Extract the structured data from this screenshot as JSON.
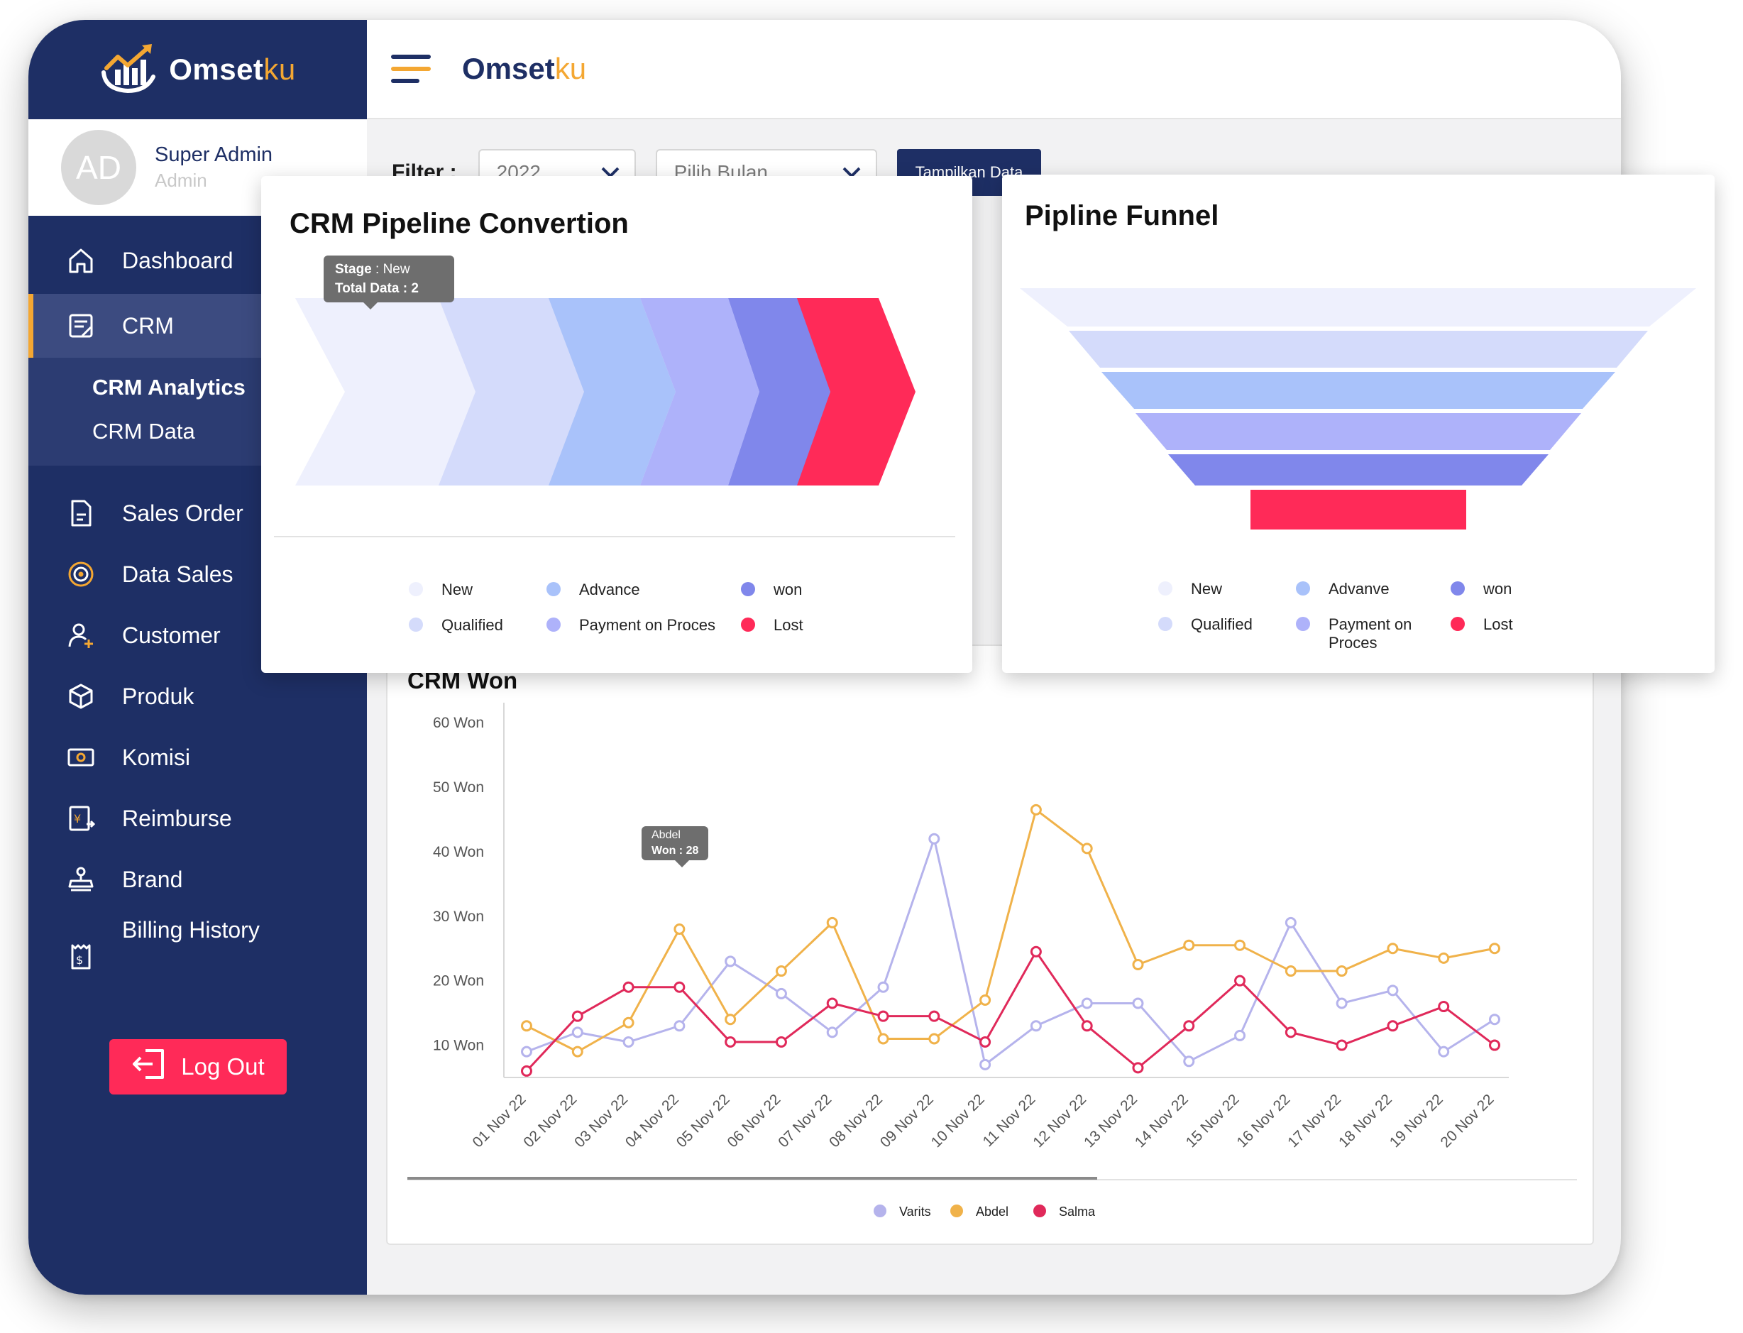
{
  "app": {
    "name_main": "Omset",
    "name_accent": "ku"
  },
  "profile": {
    "initials": "AD",
    "name": "Super Admin",
    "role": "Admin"
  },
  "menu": {
    "dashboard": "Dashboard",
    "crm": "CRM",
    "crm_analytics": "CRM Analytics",
    "crm_data": "CRM Data",
    "sales_order": "Sales Order",
    "data_sales": "Data Sales",
    "customer": "Customer",
    "produk": "Produk",
    "komisi": "Komisi",
    "reimburse": "Reimburse",
    "brand": "Brand",
    "billing_history": "Billing History",
    "logout": "Log Out"
  },
  "filter": {
    "label": "Filter :",
    "year": "2022",
    "month_placeholder": "Pilih Bulan",
    "button": "Tampilkan Data"
  },
  "pipeline": {
    "title": "CRM Pipeline Convertion",
    "tooltip": {
      "stage_label": "Stage",
      "stage_value": ": New",
      "total_label": "Total Data : 2"
    },
    "legend": [
      {
        "label": "New",
        "color": "#eef0fd"
      },
      {
        "label": "Qualified",
        "color": "#d4dbfb"
      },
      {
        "label": "Advance",
        "color": "#a9c2fa"
      },
      {
        "label": "Payment on Proces",
        "color": "#aeb2fa"
      },
      {
        "label": "won",
        "color": "#8087eb"
      },
      {
        "label": "Lost",
        "color": "#ff2a58"
      }
    ]
  },
  "funnel": {
    "title": "Pipline Funnel",
    "legend": [
      {
        "label": "New",
        "color": "#eef0fd"
      },
      {
        "label": "Qualified",
        "color": "#d4dbfb"
      },
      {
        "label": "Advanve",
        "color": "#a9c2fa"
      },
      {
        "label": "Payment on Proces",
        "color": "#aeb2fa"
      },
      {
        "label": "won",
        "color": "#8087eb"
      },
      {
        "label": "Lost",
        "color": "#ff2a58"
      }
    ]
  },
  "crm_won": {
    "title": "CRM Won",
    "tooltip": {
      "name": "Abdel",
      "value": "Won : 28"
    }
  },
  "chart_data": {
    "type": "line",
    "title": "CRM Won",
    "x": [
      "01 Nov 22",
      "02 Nov 22",
      "03 Nov 22",
      "04 Nov 22",
      "05 Nov 22",
      "06 Nov 22",
      "07 Nov 22",
      "08 Nov 22",
      "09 Nov 22",
      "10 Nov 22",
      "11 Nov 22",
      "12 Nov 22",
      "13 Nov 22",
      "14 Nov 22",
      "15 Nov 22",
      "16 Nov 22",
      "17 Nov 22",
      "18 Nov 22",
      "19 Nov 22",
      "20 Nov 22"
    ],
    "yticks": [
      "10 Won",
      "20 Won",
      "30 Won",
      "40 Won",
      "50 Won",
      "60 Won"
    ],
    "ylim": [
      5,
      62
    ],
    "grid": false,
    "legend_position": "bottom",
    "series": [
      {
        "name": "Varits",
        "color": "#b5b3ec",
        "values": [
          9,
          12,
          10.5,
          13,
          23,
          18,
          12,
          19,
          42,
          7,
          13,
          16.5,
          16.5,
          7.5,
          11.5,
          29,
          16.5,
          18.5,
          9,
          14
        ]
      },
      {
        "name": "Abdel",
        "color": "#f0b24a",
        "values": [
          13,
          9,
          13.5,
          28,
          14,
          21.5,
          29,
          11,
          11,
          17,
          46.5,
          40.5,
          22.5,
          25.5,
          25.5,
          21.5,
          21.5,
          25,
          23.5,
          25
        ]
      },
      {
        "name": "Salma",
        "color": "#e0295a",
        "values": [
          6,
          14.5,
          19,
          19,
          10.5,
          10.5,
          16.5,
          14.5,
          14.5,
          10.5,
          24.5,
          13,
          6.5,
          13,
          20,
          12,
          10,
          13,
          16,
          10
        ]
      }
    ]
  }
}
